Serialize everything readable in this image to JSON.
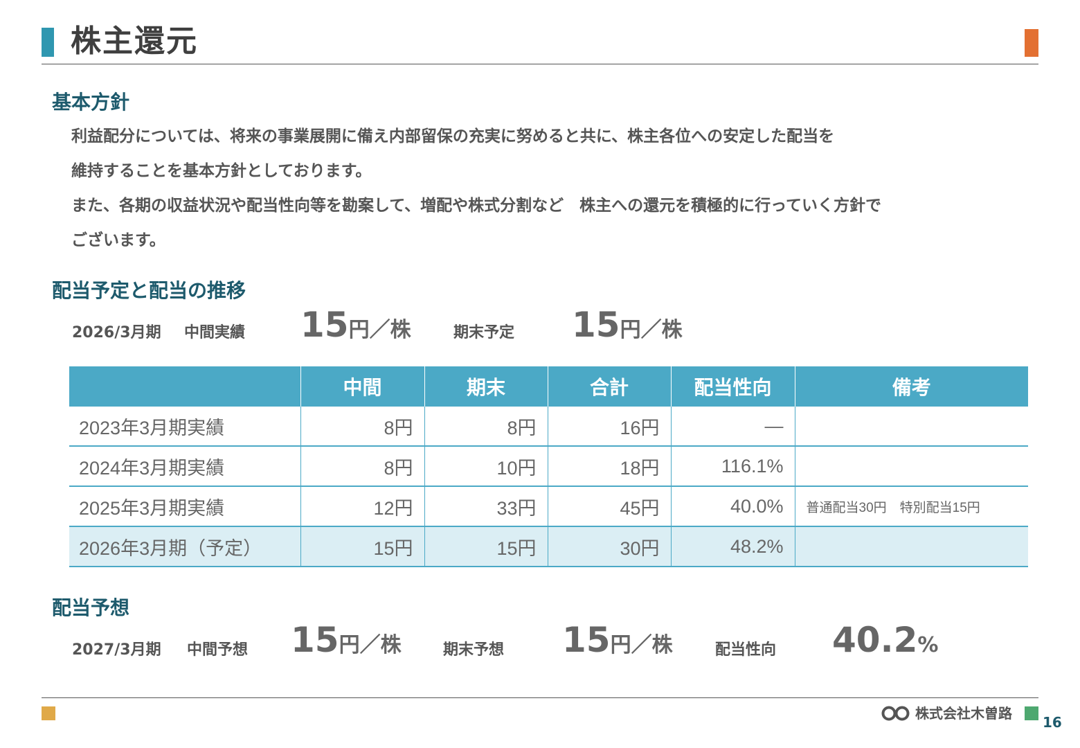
{
  "header": {
    "title": "株主還元"
  },
  "policy": {
    "heading": "基本方針",
    "lines": [
      "利益配分については、将来の事業展開に備え内部留保の充実に努めると共に、株主各位への安定した配当を",
      "維持することを基本方針としております。",
      "また、各期の収益状況や配当性向等を勘案して、増配や株式分割など　株主への還元を積極的に行っていく方針で",
      "ございます。"
    ]
  },
  "plan": {
    "heading": "配当予定と配当の推移",
    "period": "2026/3月期",
    "interim_label": "中間実績",
    "interim_value": "15",
    "interim_unit": "円／株",
    "yearend_label": "期末予定",
    "yearend_value": "15",
    "yearend_unit": "円／株"
  },
  "table": {
    "columns": [
      "",
      "中間",
      "期末",
      "合計",
      "配当性向",
      "備考"
    ],
    "rows": [
      {
        "period": "2023年3月期実績",
        "interim": "8円",
        "yearend": "8円",
        "total": "16円",
        "payout": "―",
        "note": ""
      },
      {
        "period": "2024年3月期実績",
        "interim": "8円",
        "yearend": "10円",
        "total": "18円",
        "payout": "116.1%",
        "note": ""
      },
      {
        "period": "2025年3月期実績",
        "interim": "12円",
        "yearend": "33円",
        "total": "45円",
        "payout": "40.0%",
        "note": "普通配当30円　特別配当15円"
      },
      {
        "period": "2026年3月期（予定）",
        "interim": "15円",
        "yearend": "15円",
        "total": "30円",
        "payout": "48.2%",
        "note": ""
      }
    ]
  },
  "forecast": {
    "heading": "配当予想",
    "period": "2027/3月期",
    "interim_label": "中間予想",
    "interim_value": "15",
    "interim_unit": "円／株",
    "yearend_label": "期末予想",
    "yearend_value": "15",
    "yearend_unit": "円／株",
    "payout_label": "配当性向",
    "payout_value": "40.2",
    "payout_unit": "%"
  },
  "footer": {
    "company": "株式会社木曽路",
    "page_number": "16",
    "logo_icon": "company-logo-icon"
  },
  "colors": {
    "accent_blue": "#2f97b0",
    "table_header": "#4ba9c6",
    "highlight_row": "#dbeef4",
    "accent_orange": "#e37032",
    "accent_yellow": "#e0a948",
    "accent_green": "#4ea870",
    "heading_text": "#1d5a6c"
  }
}
